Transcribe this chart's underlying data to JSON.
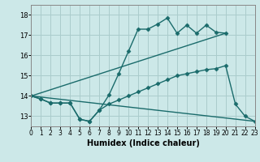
{
  "background_color": "#cce8e8",
  "grid_color": "#aacccc",
  "line_color": "#1a6b6b",
  "xlabel": "Humidex (Indice chaleur)",
  "xlim": [
    0,
    23
  ],
  "ylim": [
    12.5,
    18.5
  ],
  "xticks": [
    0,
    1,
    2,
    3,
    4,
    5,
    6,
    7,
    8,
    9,
    10,
    11,
    12,
    13,
    14,
    15,
    16,
    17,
    18,
    19,
    20,
    21,
    22,
    23
  ],
  "yticks": [
    13,
    14,
    15,
    16,
    17,
    18
  ],
  "lines": [
    {
      "x": [
        0,
        1,
        2,
        3,
        4,
        5,
        6,
        7,
        8,
        9,
        10,
        11,
        12,
        13,
        14,
        15,
        16,
        17,
        18,
        19,
        20
      ],
      "y": [
        14.0,
        13.85,
        13.65,
        13.65,
        13.65,
        12.85,
        12.75,
        13.3,
        14.05,
        15.1,
        16.2,
        17.3,
        17.3,
        17.55,
        17.85,
        17.1,
        17.5,
        17.1,
        17.5,
        17.15,
        17.1
      ],
      "marker": "D",
      "markersize": 2.5,
      "linewidth": 1.0
    },
    {
      "x": [
        0,
        20
      ],
      "y": [
        14.0,
        17.1
      ],
      "marker": null,
      "markersize": 0,
      "linewidth": 1.0
    },
    {
      "x": [
        0,
        1,
        2,
        3,
        4,
        5,
        6,
        7,
        8,
        9,
        10,
        11,
        12,
        13,
        14,
        15,
        16,
        17,
        18,
        19,
        20,
        21,
        22,
        23
      ],
      "y": [
        14.0,
        13.85,
        13.65,
        13.65,
        13.65,
        12.85,
        12.75,
        13.3,
        13.6,
        13.8,
        14.0,
        14.2,
        14.4,
        14.6,
        14.8,
        15.0,
        15.1,
        15.2,
        15.3,
        15.35,
        15.5,
        13.6,
        13.0,
        12.75
      ],
      "marker": "D",
      "markersize": 2.5,
      "linewidth": 1.0
    },
    {
      "x": [
        0,
        23
      ],
      "y": [
        14.0,
        12.75
      ],
      "marker": null,
      "markersize": 0,
      "linewidth": 1.0
    }
  ]
}
